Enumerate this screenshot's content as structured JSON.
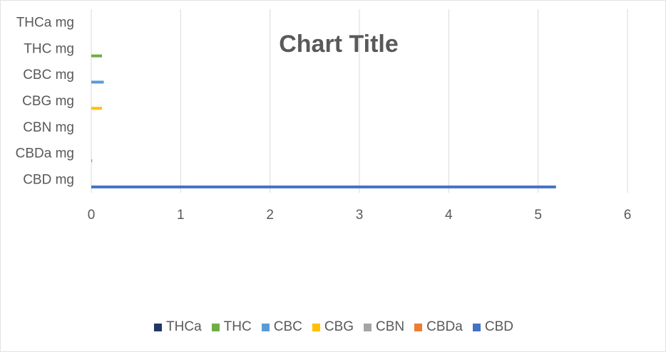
{
  "chart_data": {
    "type": "bar",
    "orientation": "horizontal",
    "title": "Chart Title",
    "categories": [
      "CBD mg",
      "CBDa mg",
      "CBN mg",
      "CBG mg",
      "CBC mg",
      "THC mg",
      "THCa mg"
    ],
    "xlim": [
      0,
      6
    ],
    "x_ticks": [
      "0",
      "1",
      "2",
      "3",
      "4",
      "5",
      "6"
    ],
    "grid": "vertical",
    "legend_position": "bottom",
    "series": [
      {
        "name": "THCa",
        "color": "#203864",
        "values": [
          0,
          0,
          0,
          0,
          0,
          0,
          0
        ]
      },
      {
        "name": "THC",
        "color": "#70AD47",
        "values": [
          0,
          0,
          0,
          0,
          0,
          0.12,
          0
        ]
      },
      {
        "name": "CBC",
        "color": "#5B9BD5",
        "values": [
          0,
          0,
          0,
          0,
          0.14,
          0,
          0
        ]
      },
      {
        "name": "CBG",
        "color": "#FFC000",
        "values": [
          0,
          0,
          0,
          0.12,
          0,
          0,
          0
        ]
      },
      {
        "name": "CBN",
        "color": "#A5A5A5",
        "values": [
          0,
          0,
          0,
          0,
          0,
          0,
          0
        ]
      },
      {
        "name": "CBDa",
        "color": "#ED7D31",
        "values": [
          0,
          0.01,
          0,
          0,
          0,
          0,
          0
        ]
      },
      {
        "name": "CBD",
        "color": "#4472C4",
        "values": [
          5.2,
          0,
          0,
          0,
          0,
          0,
          0
        ]
      }
    ]
  }
}
